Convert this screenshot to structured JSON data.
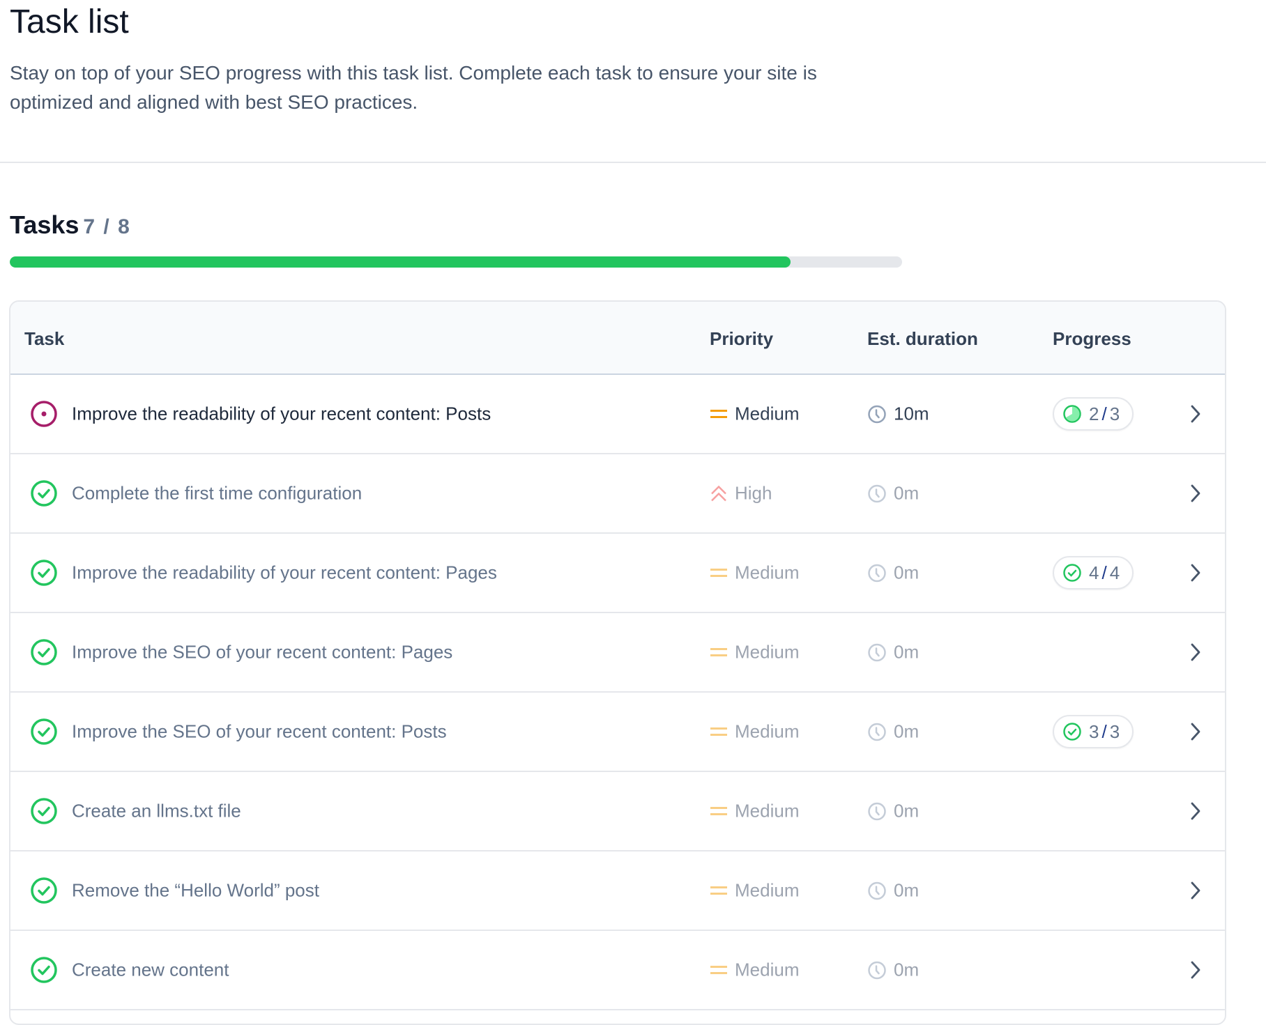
{
  "header": {
    "title": "Task list",
    "description": "Stay on top of your SEO progress with this task list. Complete each task to ensure your site is optimized and aligned with best SEO practices."
  },
  "tasks": {
    "label": "Tasks",
    "count": "7 / 8",
    "completed": 7,
    "total": 8,
    "progress_color": "#22c55e"
  },
  "table": {
    "columns": [
      "Task",
      "Priority",
      "Est. duration",
      "Progress"
    ],
    "rows": [
      {
        "task": "Improve the readability of your recent content: Posts",
        "status": "in-progress",
        "priority": "Medium",
        "duration": "10m",
        "progress_done": "2",
        "progress_total": "3",
        "progress_icon": "pie-icon"
      },
      {
        "task": "Complete the first time configuration",
        "status": "done",
        "priority": "High",
        "duration": "0m"
      },
      {
        "task": "Improve the readability of your recent content: Pages",
        "status": "done",
        "priority": "Medium",
        "duration": "0m",
        "progress_done": "4",
        "progress_total": "4",
        "progress_icon": "check-circle-icon"
      },
      {
        "task": "Improve the SEO of your recent content: Pages",
        "status": "done",
        "priority": "Medium",
        "duration": "0m"
      },
      {
        "task": "Improve the SEO of your recent content: Posts",
        "status": "done",
        "priority": "Medium",
        "duration": "0m",
        "progress_done": "3",
        "progress_total": "3",
        "progress_icon": "check-circle-icon"
      },
      {
        "task": "Create an llms.txt file",
        "status": "done",
        "priority": "Medium",
        "duration": "0m"
      },
      {
        "task": "Remove the “Hello World” post",
        "status": "done",
        "priority": "Medium",
        "duration": "0m"
      },
      {
        "task": "Create new content",
        "status": "done",
        "priority": "Medium",
        "duration": "0m"
      }
    ]
  },
  "colors": {
    "in_progress": "#a61e69",
    "done": "#22c55e",
    "medium": "#f59e0b",
    "high": "#ef4444"
  }
}
